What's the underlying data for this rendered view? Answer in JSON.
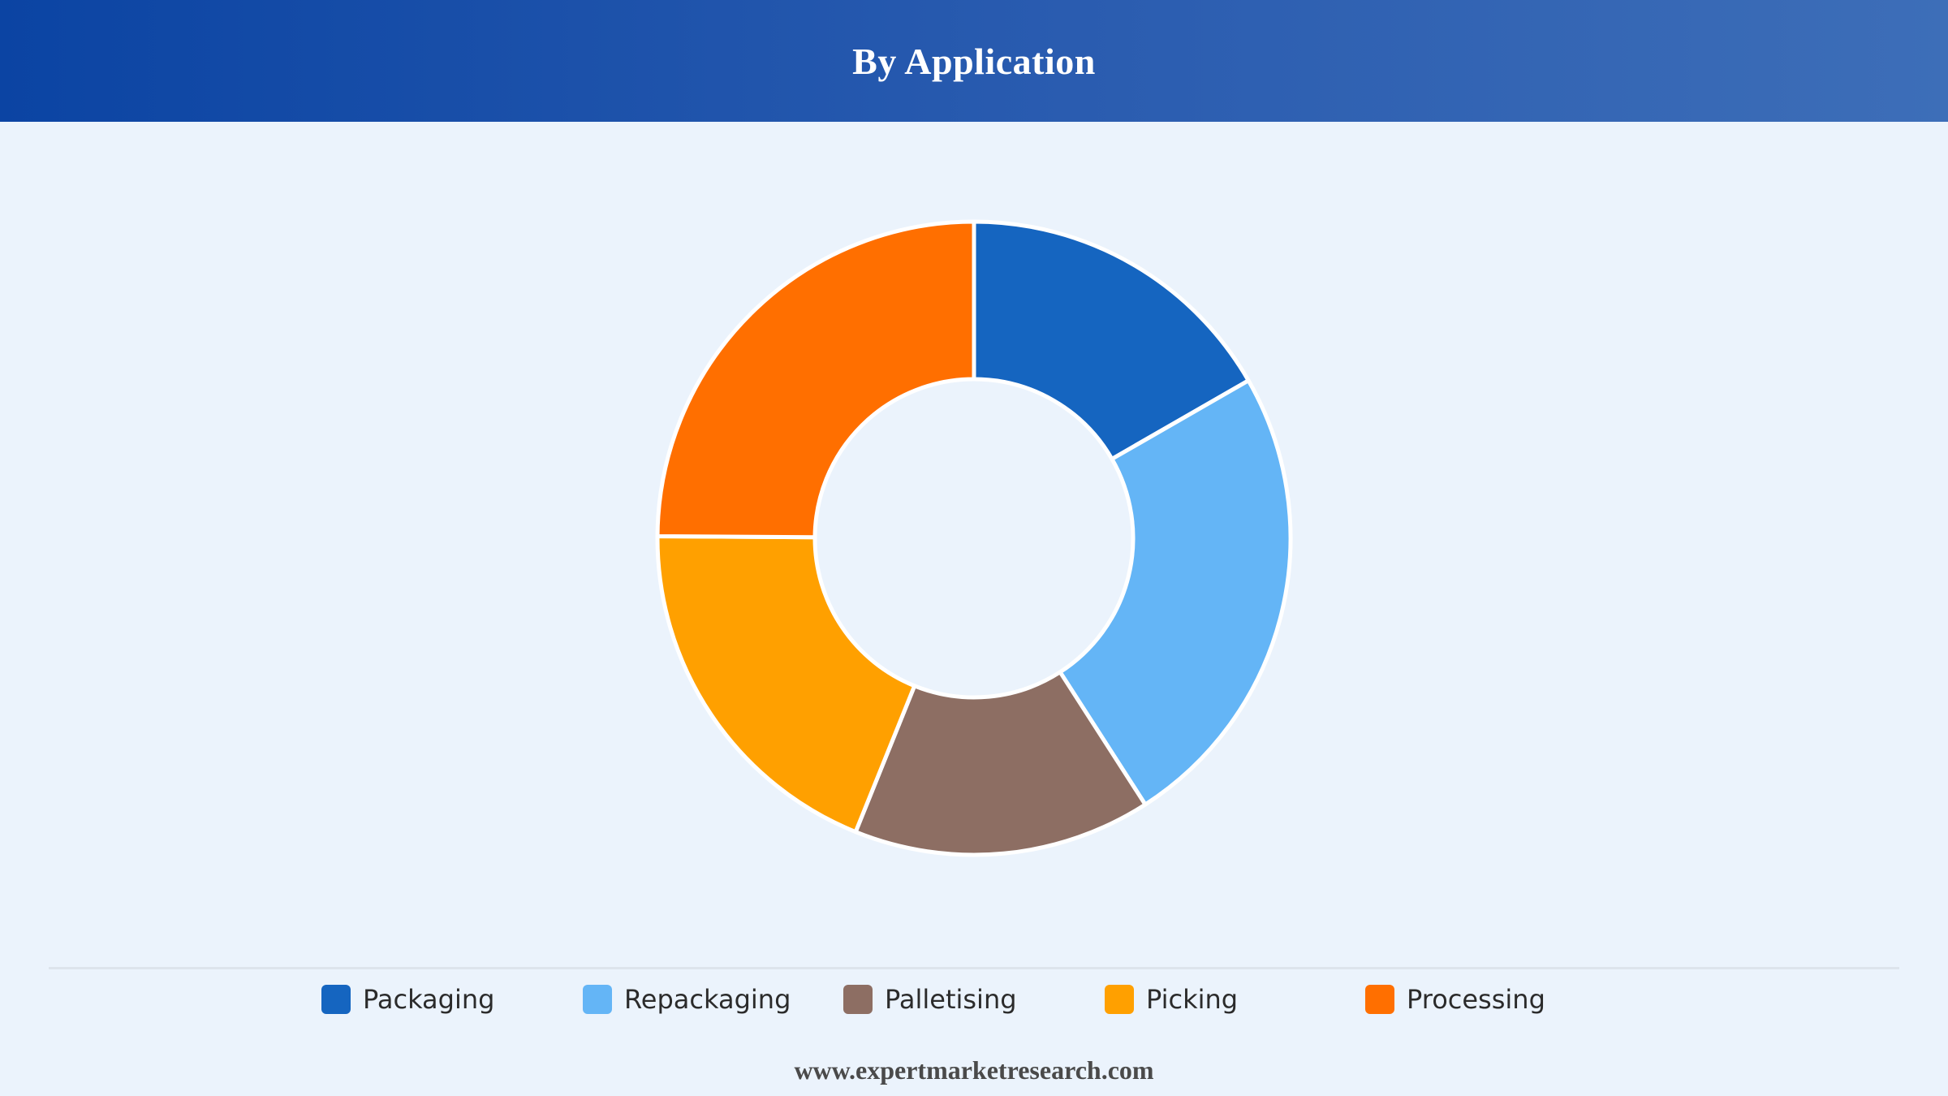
{
  "header": {
    "title": "By Application"
  },
  "chart_data": {
    "type": "pie",
    "style": "donut",
    "categories": [
      "Packaging",
      "Repackaging",
      "Palletising",
      "Picking",
      "Processing"
    ],
    "values": [
      16.7,
      24.2,
      15.2,
      19.0,
      24.9
    ],
    "colors": [
      "#1565c0",
      "#64b5f6",
      "#8d6e63",
      "#ffa000",
      "#ff6f00"
    ],
    "legend_position": "bottom"
  },
  "legend": {
    "items": [
      {
        "label": "Packaging",
        "color": "#1565c0"
      },
      {
        "label": "Repackaging",
        "color": "#64b5f6"
      },
      {
        "label": "Palletising",
        "color": "#8d6e63"
      },
      {
        "label": "Picking",
        "color": "#ffa000"
      },
      {
        "label": "Processing",
        "color": "#ff6f00"
      }
    ]
  },
  "footer": {
    "source": "www.expertmarketresearch.com"
  }
}
